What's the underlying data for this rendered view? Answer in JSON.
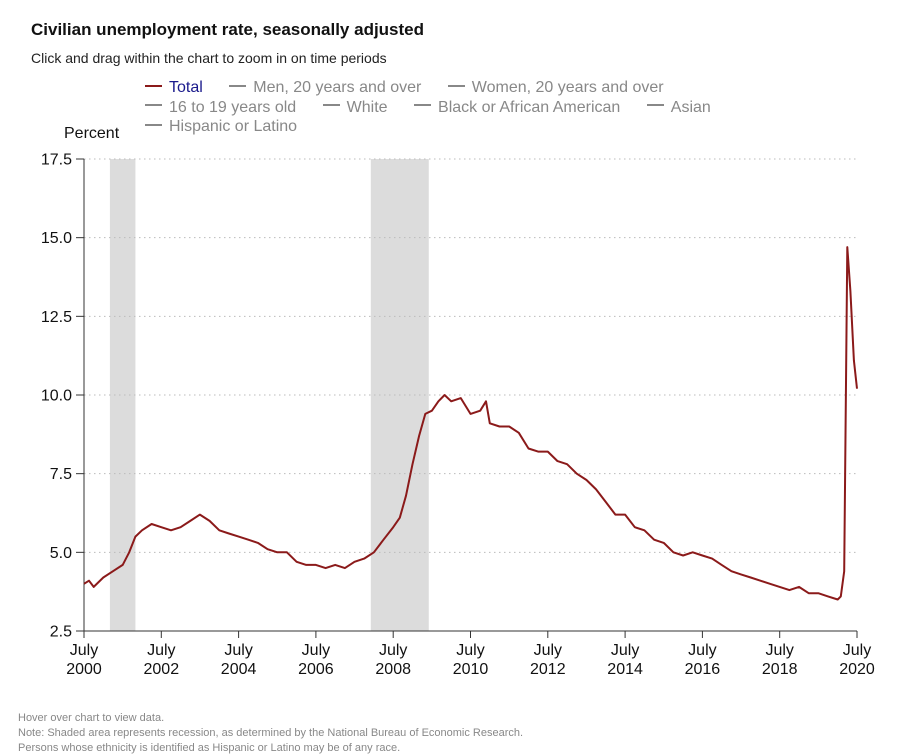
{
  "title": "Civilian unemployment rate, seasonally adjusted",
  "subtitle": "Click and drag within the chart to zoom in on time periods",
  "legend": {
    "rows": [
      [
        "Total",
        "Men, 20 years and over",
        "Women, 20 years and over"
      ],
      [
        "16 to 19 years old",
        "White",
        "Black or African American",
        "Asian"
      ],
      [
        "Hispanic or Latino"
      ]
    ],
    "active": "Total"
  },
  "notes": [
    "Hover over chart to view data.",
    "Note: Shaded area represents recession, as determined by the National Bureau of Economic Research.",
    "Persons whose ethnicity is identified as Hispanic or Latino may be of any race."
  ],
  "colors": {
    "line": "#8b1a1a",
    "recession": "#dcdcdc",
    "grid": "#bbbbbb",
    "active_legend_text": "#1a1a8c"
  },
  "chart_data": {
    "type": "line",
    "title": "Civilian unemployment rate, seasonally adjusted",
    "ylabel": "Percent",
    "xlabel": "",
    "ylim": [
      2.5,
      17.5
    ],
    "yticks": [
      2.5,
      5.0,
      7.5,
      10.0,
      12.5,
      15.0,
      17.5
    ],
    "ytick_labels": [
      "2.5",
      "5.0",
      "7.5",
      "10.0",
      "12.5",
      "15.0",
      "17.5"
    ],
    "xlim": [
      2000.5,
      2020.5
    ],
    "xticks": [
      2000.5,
      2002.5,
      2004.5,
      2006.5,
      2008.5,
      2010.5,
      2012.5,
      2014.5,
      2016.5,
      2018.5,
      2020.5
    ],
    "xtick_labels": [
      [
        "July",
        "2000"
      ],
      [
        "July",
        "2002"
      ],
      [
        "July",
        "2004"
      ],
      [
        "July",
        "2006"
      ],
      [
        "July",
        "2008"
      ],
      [
        "July",
        "2010"
      ],
      [
        "July",
        "2012"
      ],
      [
        "July",
        "2014"
      ],
      [
        "July",
        "2016"
      ],
      [
        "July",
        "2018"
      ],
      [
        "July",
        "2020"
      ]
    ],
    "grid": "horizontal-dotted",
    "recessions": [
      [
        2001.17,
        2001.83
      ],
      [
        2007.92,
        2009.42
      ]
    ],
    "series": [
      {
        "name": "Total",
        "x": [
          2000.5,
          2000.63,
          2000.75,
          2001.0,
          2001.25,
          2001.5,
          2001.67,
          2001.83,
          2002.0,
          2002.25,
          2002.5,
          2002.75,
          2003.0,
          2003.25,
          2003.5,
          2003.75,
          2004.0,
          2004.25,
          2004.5,
          2004.75,
          2005.0,
          2005.25,
          2005.5,
          2005.75,
          2006.0,
          2006.25,
          2006.5,
          2006.75,
          2007.0,
          2007.25,
          2007.5,
          2007.75,
          2008.0,
          2008.25,
          2008.5,
          2008.67,
          2008.83,
          2009.0,
          2009.17,
          2009.33,
          2009.5,
          2009.67,
          2009.83,
          2010.0,
          2010.25,
          2010.5,
          2010.75,
          2010.9,
          2011.0,
          2011.25,
          2011.5,
          2011.75,
          2012.0,
          2012.25,
          2012.5,
          2012.75,
          2013.0,
          2013.25,
          2013.5,
          2013.75,
          2014.0,
          2014.25,
          2014.5,
          2014.75,
          2015.0,
          2015.25,
          2015.5,
          2015.75,
          2016.0,
          2016.25,
          2016.5,
          2016.75,
          2017.0,
          2017.25,
          2017.5,
          2017.75,
          2018.0,
          2018.25,
          2018.5,
          2018.75,
          2019.0,
          2019.25,
          2019.5,
          2019.75,
          2020.0,
          2020.08,
          2020.17,
          2020.25,
          2020.33,
          2020.42,
          2020.5
        ],
        "values": [
          4.0,
          4.1,
          3.9,
          4.2,
          4.4,
          4.6,
          5.0,
          5.5,
          5.7,
          5.9,
          5.8,
          5.7,
          5.8,
          6.0,
          6.2,
          6.0,
          5.7,
          5.6,
          5.5,
          5.4,
          5.3,
          5.1,
          5.0,
          5.0,
          4.7,
          4.6,
          4.6,
          4.5,
          4.6,
          4.5,
          4.7,
          4.8,
          5.0,
          5.4,
          5.8,
          6.1,
          6.8,
          7.8,
          8.7,
          9.4,
          9.5,
          9.8,
          10.0,
          9.8,
          9.9,
          9.4,
          9.5,
          9.8,
          9.1,
          9.0,
          9.0,
          8.8,
          8.3,
          8.2,
          8.2,
          7.9,
          7.8,
          7.5,
          7.3,
          7.0,
          6.6,
          6.2,
          6.2,
          5.8,
          5.7,
          5.4,
          5.3,
          5.0,
          4.9,
          5.0,
          4.9,
          4.8,
          4.6,
          4.4,
          4.3,
          4.2,
          4.1,
          4.0,
          3.9,
          3.8,
          3.9,
          3.7,
          3.7,
          3.6,
          3.5,
          3.6,
          4.4,
          14.7,
          13.3,
          11.1,
          10.2
        ]
      }
    ]
  }
}
